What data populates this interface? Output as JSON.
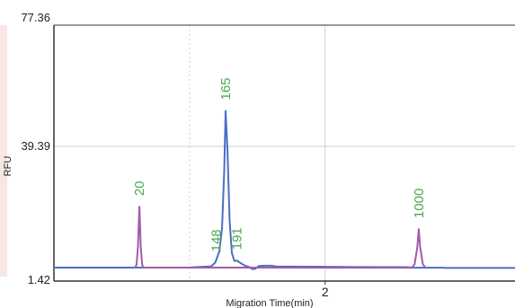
{
  "chart_data": {
    "type": "line",
    "xlabel": "Migration Time(min)",
    "ylabel": "RFU",
    "y_ticks": [
      "77.36",
      "39.39",
      "1.42"
    ],
    "ylim": [
      1.42,
      77.36
    ],
    "x_ticks": [
      {
        "value": 2,
        "label": "2"
      }
    ],
    "xlim": [
      1.0,
      2.7
    ],
    "grid": true,
    "colors": {
      "analyte": "#4a6fc4",
      "marker": "#a35aa8",
      "peak_label": "#4aa84a",
      "axis": "#333333",
      "grid": "#cfcfcf",
      "left_band": "#f6e7e2"
    },
    "series": [
      {
        "role": "analyte",
        "points": [
          [
            1.0,
            1.42
          ],
          [
            1.25,
            1.42
          ],
          [
            1.5,
            1.45
          ],
          [
            1.58,
            1.8
          ],
          [
            1.595,
            3.0
          ],
          [
            1.61,
            6.5
          ],
          [
            1.62,
            14.0
          ],
          [
            1.628,
            32.0
          ],
          [
            1.633,
            50.5
          ],
          [
            1.64,
            38.0
          ],
          [
            1.648,
            16.0
          ],
          [
            1.656,
            6.0
          ],
          [
            1.665,
            3.5
          ],
          [
            1.675,
            3.6
          ],
          [
            1.685,
            3.0
          ],
          [
            1.7,
            2.2
          ],
          [
            1.72,
            1.6
          ],
          [
            1.73,
            1.0
          ],
          [
            1.742,
            1.0
          ],
          [
            1.755,
            1.9
          ],
          [
            1.78,
            2.0
          ],
          [
            1.8,
            2.0
          ],
          [
            1.82,
            1.75
          ],
          [
            1.95,
            1.7
          ],
          [
            2.1,
            1.6
          ],
          [
            2.3,
            1.55
          ],
          [
            2.33,
            1.4
          ],
          [
            2.43,
            1.4
          ],
          [
            2.45,
            1.3
          ],
          [
            2.7,
            1.3
          ]
        ]
      },
      {
        "role": "marker",
        "points": [
          [
            1.3,
            1.42
          ],
          [
            1.305,
            2.5
          ],
          [
            1.31,
            8.0
          ],
          [
            1.315,
            20.5
          ],
          [
            1.32,
            8.0
          ],
          [
            1.325,
            2.5
          ],
          [
            1.33,
            1.42
          ],
          [
            2.32,
            1.4
          ],
          [
            2.33,
            2.5
          ],
          [
            2.34,
            8.0
          ],
          [
            2.345,
            13.5
          ],
          [
            2.35,
            8.0
          ],
          [
            2.36,
            2.5
          ],
          [
            2.37,
            1.4
          ]
        ]
      }
    ],
    "annotations": [
      {
        "text": "20",
        "x": 1.315,
        "y": 20.5
      },
      {
        "text": "165",
        "x": 1.633,
        "y": 50.5
      },
      {
        "text": "148",
        "x": 1.598,
        "y": 3.0
      },
      {
        "text": "191",
        "x": 1.675,
        "y": 3.6
      },
      {
        "text": "1000",
        "x": 2.345,
        "y": 13.5
      }
    ]
  }
}
